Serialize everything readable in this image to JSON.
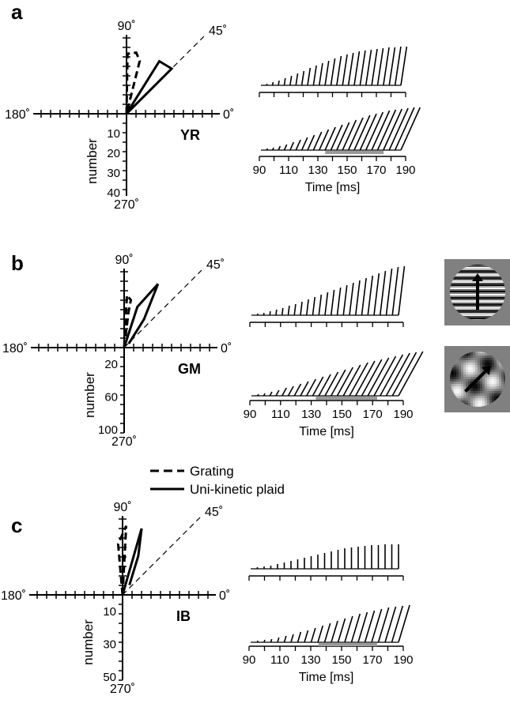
{
  "legend": [
    {
      "label": "Grating",
      "style": "dashed"
    },
    {
      "label": "Uni-kinetic plaid",
      "style": "solid"
    }
  ],
  "chart_data": [
    {
      "panel": "a",
      "subject": "YR",
      "polar": {
        "type": "polar-histogram",
        "angle_labels": {
          "top": "90˚",
          "left": "180˚",
          "right": "0˚",
          "bottom": "270˚",
          "diag": "45˚"
        },
        "ylabel": "number",
        "ticks": [
          "10",
          "20",
          "30",
          "40"
        ],
        "rmax": 40,
        "series": [
          {
            "name": "Grating",
            "style": "dashed",
            "points": [
              {
                "angle": 90,
                "r": 0
              },
              {
                "angle": 89,
                "r": 32
              },
              {
                "angle": 81,
                "r": 33
              },
              {
                "angle": 76,
                "r": 29
              },
              {
                "angle": 90,
                "r": 0
              }
            ]
          },
          {
            "name": "Uni-kinetic plaid",
            "style": "solid",
            "points": [
              {
                "angle": 0,
                "r": 0
              },
              {
                "angle": 58,
                "r": 33
              },
              {
                "angle": 45,
                "r": 34
              },
              {
                "angle": 0,
                "r": 0
              }
            ]
          }
        ]
      },
      "timecourse": {
        "type": "waterfall",
        "xlabel": "Time [ms]",
        "xticks": [
          "90",
          "110",
          "130",
          "150",
          "170",
          "190"
        ],
        "xlim": [
          90,
          190
        ],
        "bar_range": [
          135,
          175
        ],
        "rows": [
          {
            "n": 24,
            "heights": [
              2,
              4,
              6,
              9,
              12,
              15,
              18,
              22,
              25,
              28,
              31,
              34,
              37,
              39,
              41,
              43,
              44,
              45,
              46,
              47,
              48,
              48,
              49,
              49
            ],
            "slant": 0.15
          },
          {
            "n": 24,
            "heights": [
              2,
              3,
              5,
              7,
              10,
              13,
              16,
              19,
              23,
              26,
              29,
              32,
              35,
              38,
              41,
              44,
              46,
              48,
              50,
              51,
              52,
              53,
              54,
              54
            ],
            "slant": 0.45
          }
        ]
      }
    },
    {
      "panel": "b",
      "subject": "GM",
      "polar": {
        "type": "polar-histogram",
        "angle_labels": {
          "top": "90˚",
          "left": "180˚",
          "right": "0˚",
          "bottom": "270˚",
          "diag": "45˚"
        },
        "ylabel": "number",
        "ticks": [
          "20",
          "60",
          "100"
        ],
        "tick_count": 5,
        "rmax": 100,
        "series": [
          {
            "name": "Grating",
            "style": "dashed",
            "points": [
              {
                "angle": 90,
                "r": 0
              },
              {
                "angle": 87,
                "r": 70
              },
              {
                "angle": 82,
                "r": 64
              },
              {
                "angle": 83,
                "r": 48
              },
              {
                "angle": 90,
                "r": 0
              }
            ]
          },
          {
            "name": "Uni-kinetic plaid",
            "style": "solid",
            "points": [
              {
                "angle": 85,
                "r": 0
              },
              {
                "angle": 72,
                "r": 57
              },
              {
                "angle": 62,
                "r": 96
              },
              {
                "angle": 55,
                "r": 46
              },
              {
                "angle": 40,
                "r": 8
              }
            ]
          }
        ]
      },
      "timecourse": {
        "type": "waterfall",
        "xlabel": "Time [ms]",
        "xticks": [
          "90",
          "110",
          "130",
          "150",
          "170",
          "190"
        ],
        "xlim": [
          90,
          190
        ],
        "bar_range": [
          133,
          173
        ],
        "rows": [
          {
            "n": 24,
            "heights": [
              2,
              3,
              5,
              7,
              9,
              12,
              14,
              17,
              20,
              23,
              26,
              29,
              32,
              35,
              38,
              41,
              44,
              47,
              50,
              53,
              56,
              59,
              61,
              62
            ],
            "slant": 0.12
          },
          {
            "n": 24,
            "heights": [
              2,
              3,
              5,
              7,
              10,
              12,
              15,
              18,
              21,
              24,
              27,
              30,
              33,
              36,
              39,
              42,
              44,
              46,
              48,
              50,
              52,
              54,
              55,
              56
            ],
            "slant": 0.55
          }
        ]
      },
      "stimuli": [
        {
          "kind": "grating",
          "direction_deg": 90
        },
        {
          "kind": "plaid",
          "direction_deg": 45
        }
      ]
    },
    {
      "panel": "c",
      "subject": "IB",
      "polar": {
        "type": "polar-histogram",
        "angle_labels": {
          "top": "90˚",
          "left": "180˚",
          "right": "0˚",
          "bottom": "270˚",
          "diag": "45˚"
        },
        "ylabel": "number",
        "ticks": [
          "10",
          "30",
          "50"
        ],
        "tick_count": 5,
        "rmax": 50,
        "series": [
          {
            "name": "Grating",
            "style": "dashed",
            "points": [
              {
                "angle": 90,
                "r": 0
              },
              {
                "angle": 87,
                "r": 46
              },
              {
                "angle": 95,
                "r": 34
              },
              {
                "angle": 90,
                "r": 0
              }
            ]
          },
          {
            "name": "Uni-kinetic plaid",
            "style": "solid",
            "points": [
              {
                "angle": 88,
                "r": 0
              },
              {
                "angle": 74,
                "r": 46
              },
              {
                "angle": 68,
                "r": 28
              },
              {
                "angle": 55,
                "r": 8
              }
            ]
          }
        ]
      },
      "timecourse": {
        "type": "waterfall",
        "xlabel": "Time [ms]",
        "xticks": [
          "90",
          "110",
          "130",
          "150",
          "170",
          "190"
        ],
        "xlim": [
          90,
          190
        ],
        "bar_range": [
          135,
          173
        ],
        "rows": [
          {
            "n": 22,
            "heights": [
              2,
              3,
              4,
              6,
              8,
              10,
              12,
              14,
              16,
              18,
              20,
              22,
              24,
              26,
              27,
              28,
              29,
              30,
              30,
              31,
              31,
              31
            ],
            "slant": 0.0
          },
          {
            "n": 22,
            "heights": [
              2,
              3,
              4,
              6,
              8,
              10,
              13,
              15,
              18,
              21,
              24,
              27,
              30,
              33,
              36,
              38,
              40,
              42,
              44,
              45,
              46,
              47
            ],
            "slant": 0.3
          }
        ]
      }
    }
  ]
}
